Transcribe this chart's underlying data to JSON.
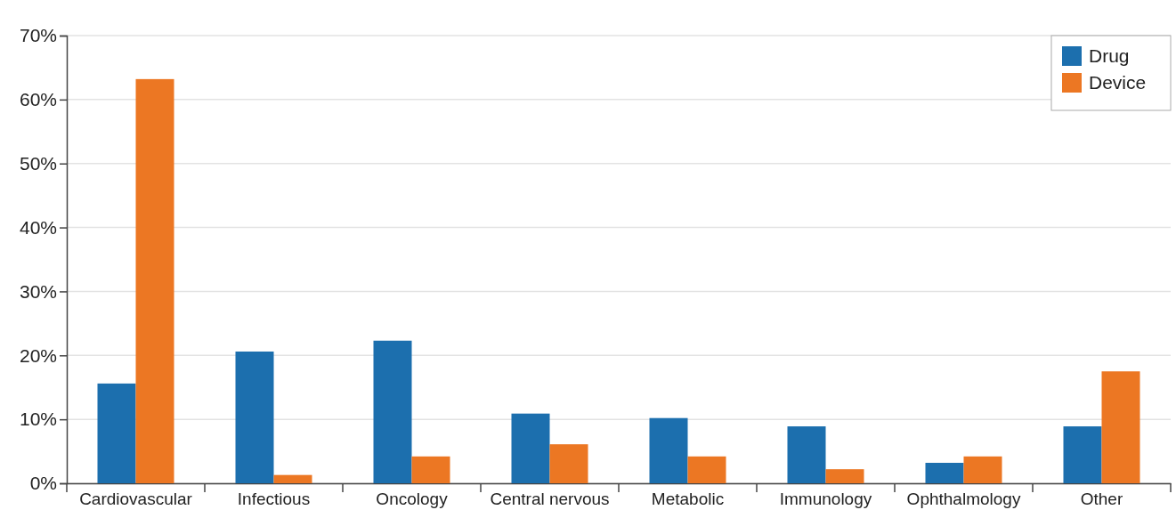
{
  "chart_data": {
    "type": "bar",
    "categories": [
      "Cardiovascular",
      "Infectious",
      "Oncology",
      "Central nervous",
      "Metabolic",
      "Immunology",
      "Ophthalmology",
      "Other"
    ],
    "series": [
      {
        "name": "Drug",
        "color": "#1c6fae",
        "values": [
          15.6,
          20.6,
          22.3,
          10.9,
          10.2,
          8.9,
          3.2,
          8.9
        ]
      },
      {
        "name": "Device",
        "color": "#ec7723",
        "values": [
          63.2,
          1.3,
          4.2,
          6.1,
          4.2,
          2.2,
          4.2,
          17.5
        ]
      }
    ],
    "ylim": [
      0,
      70
    ],
    "yticks": [
      {
        "value": 0,
        "label": "0%"
      },
      {
        "value": 10,
        "label": "10%"
      },
      {
        "value": 20,
        "label": "20%"
      },
      {
        "value": 30,
        "label": "30%"
      },
      {
        "value": 40,
        "label": "40%"
      },
      {
        "value": 50,
        "label": "50%"
      },
      {
        "value": 60,
        "label": "60%"
      },
      {
        "value": 70,
        "label": "70%"
      }
    ],
    "grid": "y",
    "legend": "top right"
  }
}
